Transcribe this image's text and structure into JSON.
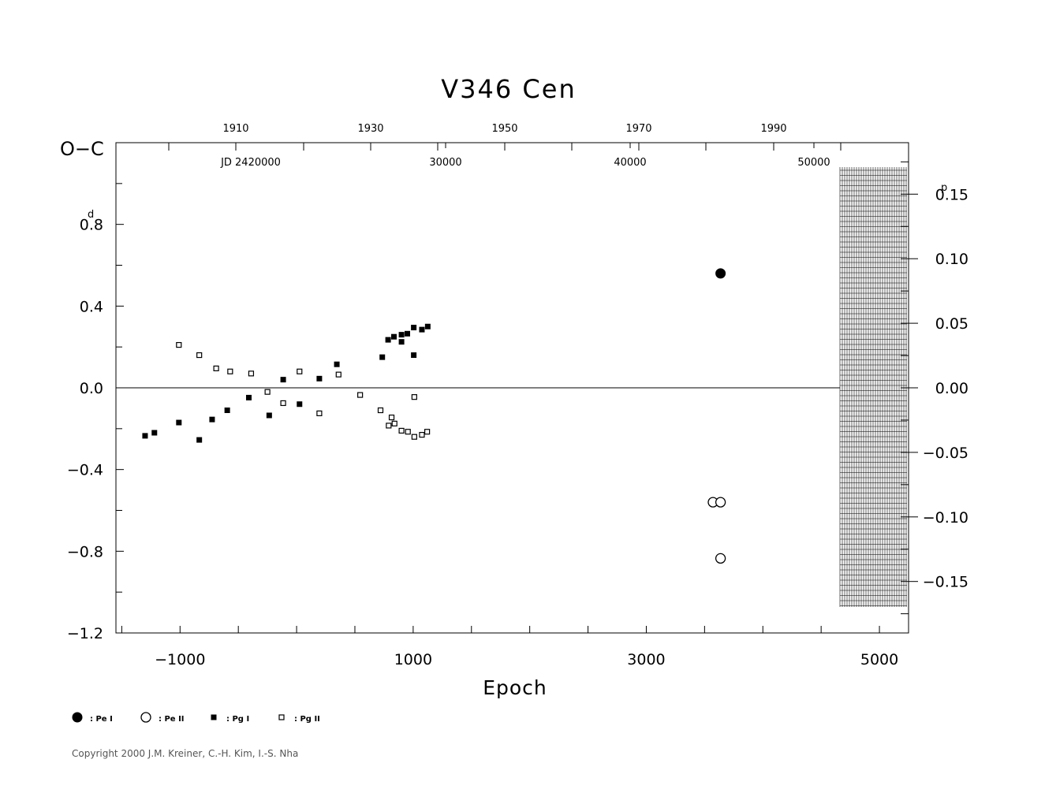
{
  "chart_data": {
    "type": "scatter",
    "title": "V346  Cen",
    "ylabel": "O−C",
    "xlabel": "Epoch",
    "y_unit_left": "d",
    "y_unit_right": "p",
    "xlim": [
      -1550,
      5250
    ],
    "ylim": [
      -1.2,
      1.2
    ],
    "x_ticks": [
      -1000,
      1000,
      3000,
      5000
    ],
    "x_tick_labels": [
      "−1000",
      "1000",
      "3000",
      "5000"
    ],
    "y_ticks": [
      0.8,
      0.4,
      0.0,
      -0.4,
      -0.8,
      -1.2
    ],
    "y_tick_labels": [
      "0.8",
      "0.4",
      "0.0",
      "−0.4",
      "−0.8",
      "−1.2"
    ],
    "right_ticks": [
      0.15,
      0.1,
      0.05,
      0.0,
      -0.05,
      -0.1,
      -0.15
    ],
    "right_tick_labels": [
      "0.15",
      "0.10",
      "0.05",
      "0.00",
      "−0.05",
      "−0.10",
      "−0.15"
    ],
    "right_scale_days_per_phase": 6.32,
    "top_year_ticks": [
      1910,
      1930,
      1950,
      1970,
      1990
    ],
    "top_jd_labels": [
      "JD  2420000",
      "30000",
      "40000",
      "50000"
    ],
    "zero_line": true,
    "series": [
      {
        "name": "Pe I",
        "marker": "filled-circle",
        "points": [
          [
            3637,
            0.56
          ]
        ]
      },
      {
        "name": "Pe II",
        "marker": "open-circle",
        "points": [
          [
            3572,
            -0.56
          ],
          [
            3637,
            -0.56
          ],
          [
            3637,
            -0.835
          ]
        ]
      },
      {
        "name": "Pg I",
        "marker": "filled-square",
        "points": [
          [
            -1300,
            -0.235
          ],
          [
            -1220,
            -0.22
          ],
          [
            -1010,
            -0.17
          ],
          [
            -835,
            -0.255
          ],
          [
            -725,
            -0.155
          ],
          [
            -595,
            -0.11
          ],
          [
            -410,
            -0.048
          ],
          [
            -235,
            -0.135
          ],
          [
            -115,
            0.04
          ],
          [
            25,
            -0.08
          ],
          [
            195,
            0.045
          ],
          [
            345,
            0.115
          ],
          [
            735,
            0.15
          ],
          [
            785,
            0.235
          ],
          [
            835,
            0.25
          ],
          [
            900,
            0.225
          ],
          [
            900,
            0.26
          ],
          [
            950,
            0.265
          ],
          [
            1005,
            0.295
          ],
          [
            1005,
            0.16
          ],
          [
            1075,
            0.285
          ],
          [
            1125,
            0.3
          ]
        ]
      },
      {
        "name": "Pg II",
        "marker": "open-square",
        "points": [
          [
            -1010,
            0.21
          ],
          [
            -835,
            0.16
          ],
          [
            -690,
            0.095
          ],
          [
            -570,
            0.08
          ],
          [
            -390,
            0.07
          ],
          [
            -250,
            -0.02
          ],
          [
            -115,
            -0.075
          ],
          [
            25,
            0.08
          ],
          [
            195,
            -0.125
          ],
          [
            360,
            0.065
          ],
          [
            545,
            -0.035
          ],
          [
            720,
            -0.11
          ],
          [
            790,
            -0.185
          ],
          [
            815,
            -0.145
          ],
          [
            840,
            -0.175
          ],
          [
            900,
            -0.21
          ],
          [
            955,
            -0.215
          ],
          [
            1010,
            -0.045
          ],
          [
            1010,
            -0.24
          ],
          [
            1075,
            -0.23
          ],
          [
            1120,
            -0.215
          ]
        ]
      }
    ]
  },
  "legend": [
    {
      "marker": "filled-circle",
      "label": ": Pe I"
    },
    {
      "marker": "open-circle",
      "label": ": Pe II"
    },
    {
      "marker": "filled-square",
      "label": ": Pg I"
    },
    {
      "marker": "open-square",
      "label": ": Pg II"
    }
  ],
  "copyright": "Copyright 2000 J.M. Kreiner, C.-H. Kim, I.-S. Nha"
}
